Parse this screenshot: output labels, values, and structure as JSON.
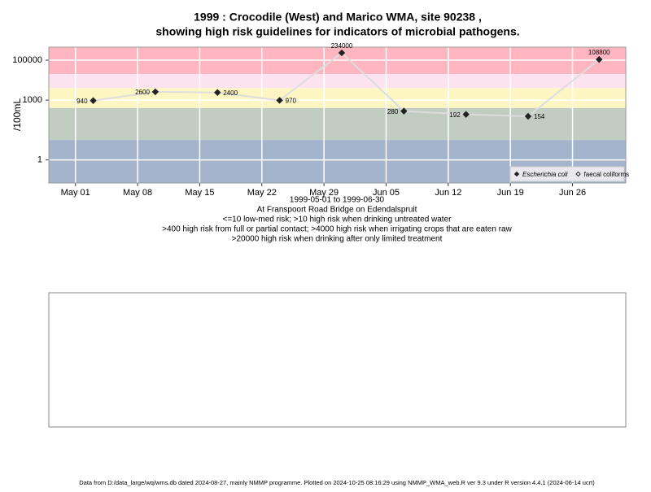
{
  "chart_data": {
    "type": "line",
    "title": "1999 : Crocodile (West) and Marico WMA, site 90238 ,",
    "subtitle": "showing high risk guidelines for indicators of microbial pathogens.",
    "y_label": "/100mL",
    "x_label": "1999-05-01 to 1999-06-30",
    "notes": [
      "At Franspoort Road Bridge on Edendalspruit",
      "<=10 low-med risk; >10 high risk when drinking untreated water",
      ">400 high risk from full or partial contact; >4000 high risk when irrigating crops that are eaten raw",
      ">20000 high risk when drinking after only limited treatment"
    ],
    "footer": "Data from D:/data_large/wq/wms.db dated 2024-08-27, mainly NMMP programme. Plotted on 2024-10-25 08:16:29 using NMMP_WMA_web.R ver 9.3 under R version 4.4.1 (2024-06-14 ucrt)",
    "log_y": true,
    "grid": true,
    "legend_position": "bottom-right",
    "thresholds": [
      20000,
      4000,
      400,
      10
    ],
    "band_colors": [
      "#ffb6c1",
      "#fde3f0",
      "#fdf6c3",
      "#c2cdc2",
      "#a3b4cc"
    ],
    "x": [
      "1999-05-03",
      "1999-05-10",
      "1999-05-17",
      "1999-05-24",
      "1999-05-31",
      "1999-06-07",
      "1999-06-14",
      "1999-06-21",
      "1999-06-29"
    ],
    "series": [
      {
        "name": "Escherichia coli",
        "color": "#222222",
        "line_color": "#dddddd",
        "marker": "filled",
        "values": [
          940,
          2600,
          2400,
          970,
          234000,
          280,
          192,
          154,
          108800
        ]
      },
      {
        "name": "faecal coliforms",
        "color": "#222222",
        "marker": "open",
        "values": [
          null,
          null,
          null,
          null,
          null,
          null,
          null,
          null,
          null
        ]
      }
    ],
    "xlim": [
      "1999-04-28",
      "1999-07-02"
    ],
    "xticks": [
      {
        "value": "1999-05-01",
        "label": "May 01"
      },
      {
        "value": "1999-05-08",
        "label": "May 08"
      },
      {
        "value": "1999-05-15",
        "label": "May 15"
      },
      {
        "value": "1999-05-22",
        "label": "May 22"
      },
      {
        "value": "1999-05-29",
        "label": "May 29"
      },
      {
        "value": "1999-06-05",
        "label": "Jun 05"
      },
      {
        "value": "1999-06-12",
        "label": "Jun 12"
      },
      {
        "value": "1999-06-19",
        "label": "Jun 19"
      },
      {
        "value": "1999-06-26",
        "label": "Jun 26"
      }
    ],
    "ylim": [
      0.07,
      450000
    ],
    "yticks": [
      1,
      1000,
      100000
    ]
  }
}
